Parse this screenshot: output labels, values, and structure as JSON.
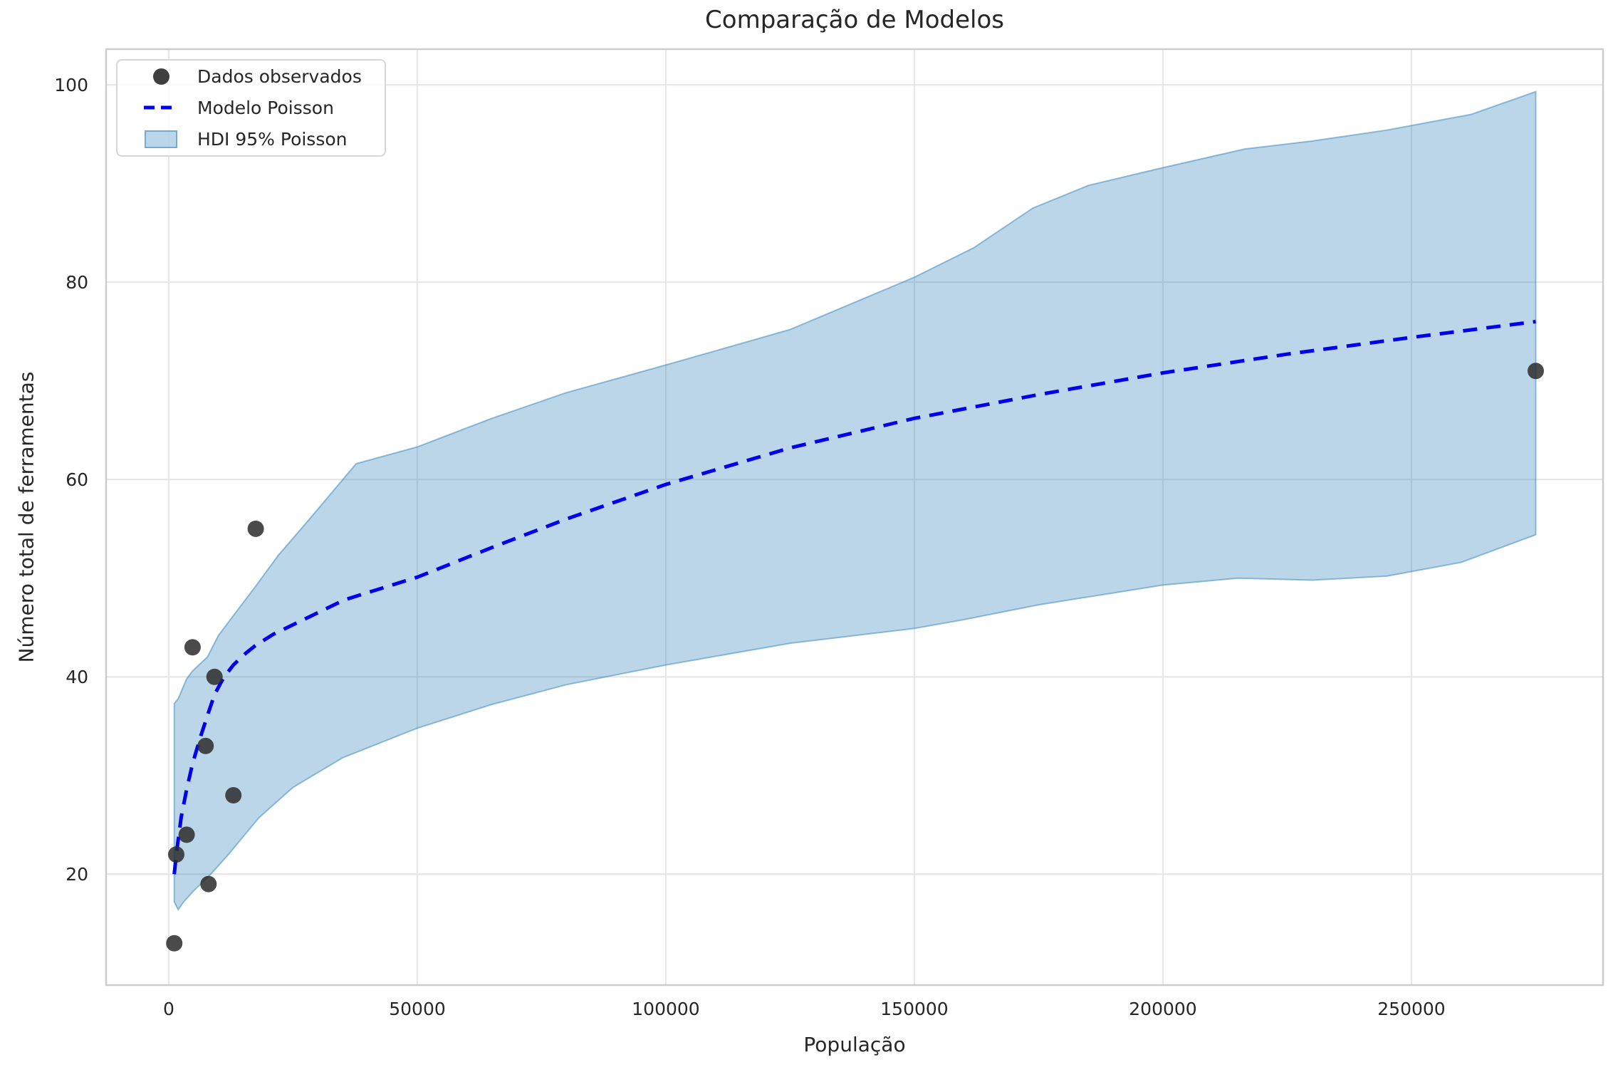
{
  "chart_data": {
    "type": "scatter",
    "title": "Comparação de Modelos",
    "xlabel": "População",
    "ylabel": "Número total de ferramentas",
    "xlim": [
      -12608,
      288545
    ],
    "ylim": [
      8.76,
      103.61
    ],
    "grid": true,
    "legend_position": "upper left",
    "x_ticks": [
      0,
      50000,
      100000,
      150000,
      200000,
      250000
    ],
    "x_tick_labels": [
      "0",
      "50000",
      "100000",
      "150000",
      "200000",
      "250000"
    ],
    "y_ticks": [
      20,
      40,
      60,
      80,
      100
    ],
    "y_tick_labels": [
      "20",
      "40",
      "60",
      "80",
      "100"
    ],
    "series": [
      {
        "name": "Dados observados",
        "kind": "scatter",
        "color": "#2b2b2b",
        "opacity": 0.85,
        "marker_radius": 11.5,
        "points": [
          [
            1100,
            13
          ],
          [
            1500,
            22
          ],
          [
            3600,
            24
          ],
          [
            4791,
            43
          ],
          [
            7400,
            33
          ],
          [
            8000,
            19
          ],
          [
            9200,
            40
          ],
          [
            13000,
            28
          ],
          [
            17500,
            55
          ],
          [
            275000,
            71
          ]
        ]
      },
      {
        "name": "Modelo Poisson",
        "kind": "line",
        "style": "dashed",
        "color": "#0000ee",
        "line_width": 5,
        "points": [
          [
            1100,
            20
          ],
          [
            1500,
            22
          ],
          [
            2500,
            25.8
          ],
          [
            3600,
            28.6
          ],
          [
            4791,
            31.2
          ],
          [
            6300,
            33.8
          ],
          [
            8000,
            36.4
          ],
          [
            9200,
            38.2
          ],
          [
            11000,
            39.9
          ],
          [
            13000,
            41.2
          ],
          [
            15500,
            42.4
          ],
          [
            17500,
            43.2
          ],
          [
            21000,
            44.3
          ],
          [
            26700,
            45.7
          ],
          [
            35300,
            47.8
          ],
          [
            50000,
            50.1
          ],
          [
            65000,
            53.1
          ],
          [
            80000,
            56.0
          ],
          [
            100000,
            59.5
          ],
          [
            125000,
            63.2
          ],
          [
            150000,
            66.2
          ],
          [
            175000,
            68.6
          ],
          [
            200000,
            70.8
          ],
          [
            225000,
            72.7
          ],
          [
            250000,
            74.4
          ],
          [
            275000,
            76.0
          ]
        ]
      },
      {
        "name": "HDI 95% Poisson",
        "kind": "band",
        "color": "#1f77b4",
        "fill_opacity": 0.3,
        "edge_opacity": 0.45,
        "upper": [
          [
            1100,
            37.3
          ],
          [
            1900,
            37.8
          ],
          [
            3600,
            39.8
          ],
          [
            4791,
            40.6
          ],
          [
            7750,
            42.0
          ],
          [
            10000,
            44.2
          ],
          [
            13000,
            46.2
          ],
          [
            17500,
            49.2
          ],
          [
            22000,
            52.3
          ],
          [
            28000,
            55.8
          ],
          [
            37700,
            61.6
          ],
          [
            50000,
            63.3
          ],
          [
            65000,
            66.2
          ],
          [
            80000,
            68.8
          ],
          [
            100000,
            71.6
          ],
          [
            125000,
            75.2
          ],
          [
            150000,
            80.5
          ],
          [
            162000,
            83.5
          ],
          [
            173800,
            87.5
          ],
          [
            185000,
            89.8
          ],
          [
            200000,
            91.6
          ],
          [
            216500,
            93.5
          ],
          [
            230000,
            94.3
          ],
          [
            245000,
            95.4
          ],
          [
            262000,
            97.0
          ],
          [
            275000,
            99.3
          ]
        ],
        "lower": [
          [
            1100,
            17.2
          ],
          [
            1900,
            16.4
          ],
          [
            3000,
            17.2
          ],
          [
            5000,
            18.3
          ],
          [
            8100,
            19.8
          ],
          [
            12000,
            22.0
          ],
          [
            18100,
            25.7
          ],
          [
            25000,
            28.8
          ],
          [
            35000,
            31.8
          ],
          [
            50000,
            34.8
          ],
          [
            65000,
            37.2
          ],
          [
            80000,
            39.2
          ],
          [
            100000,
            41.2
          ],
          [
            125000,
            43.4
          ],
          [
            150000,
            44.9
          ],
          [
            160000,
            45.8
          ],
          [
            175000,
            47.3
          ],
          [
            200000,
            49.3
          ],
          [
            215000,
            50.0
          ],
          [
            230000,
            49.8
          ],
          [
            245000,
            50.2
          ],
          [
            260000,
            51.6
          ],
          [
            275000,
            54.4
          ]
        ]
      }
    ],
    "style": {
      "grid_color": "#e7e7e7",
      "spine_color": "#cdcdcd",
      "tick_label_color": "#262626",
      "background": "#ffffff"
    }
  }
}
